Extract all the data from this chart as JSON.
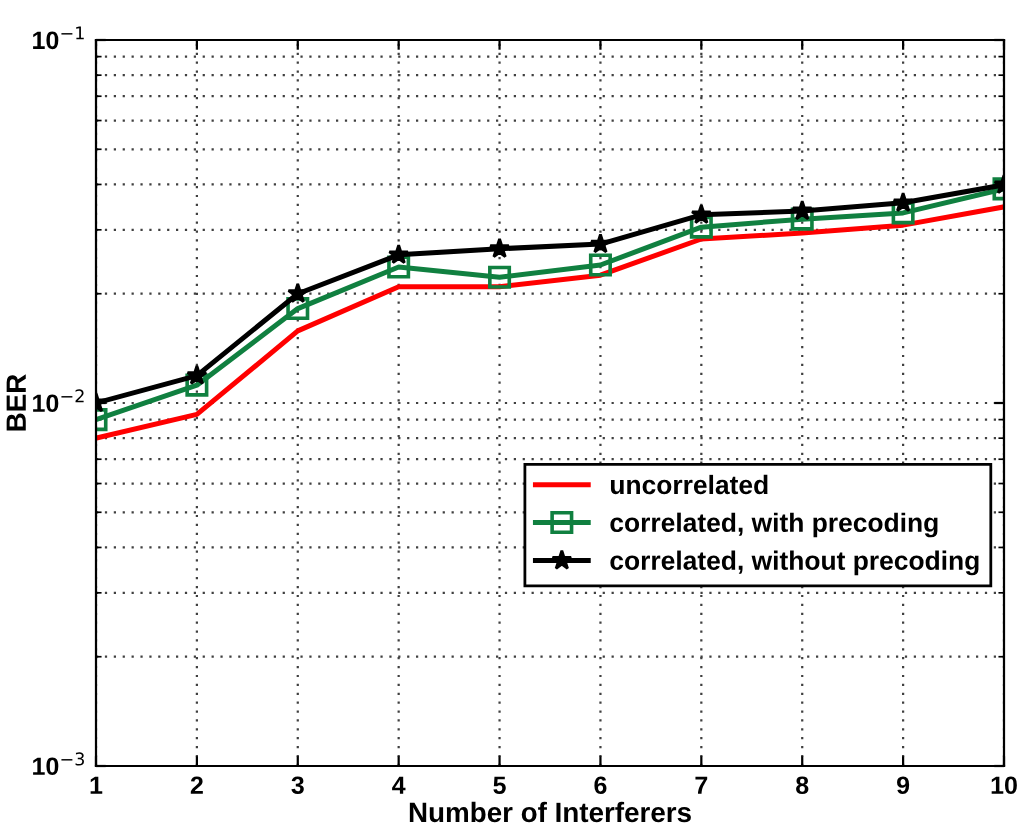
{
  "chart_data": {
    "type": "line",
    "xlabel": "Number of Interferers",
    "ylabel": "BER",
    "x": [
      1,
      2,
      3,
      4,
      5,
      6,
      7,
      8,
      9,
      10
    ],
    "series": [
      {
        "name": "uncorrelated",
        "color": "#ff0000",
        "marker": "none",
        "values": [
          0.008,
          0.0093,
          0.0158,
          0.0209,
          0.0209,
          0.0225,
          0.0283,
          0.0294,
          0.0309,
          0.0347
        ]
      },
      {
        "name": "correlated, with precoding",
        "color": "#108040",
        "marker": "square",
        "values": [
          0.009,
          0.0112,
          0.0182,
          0.0237,
          0.0222,
          0.024,
          0.0305,
          0.0321,
          0.0334,
          0.0389
        ]
      },
      {
        "name": "correlated, without precoding",
        "color": "#000000",
        "marker": "star",
        "values": [
          0.01,
          0.0119,
          0.02,
          0.0256,
          0.0266,
          0.0274,
          0.033,
          0.0338,
          0.0356,
          0.0399
        ]
      }
    ],
    "log": "y",
    "xlim": [
      1,
      10
    ],
    "ylim": [
      0.001,
      0.1
    ],
    "xticks": [
      1,
      2,
      3,
      4,
      5,
      6,
      7,
      8,
      9,
      10
    ],
    "yticks": [
      {
        "value": 0.001,
        "label": "10$^{−3}$"
      },
      {
        "value": 0.01,
        "label": "10$^{−2}$"
      },
      {
        "value": 0.1,
        "label": "10$^{−1}$"
      }
    ],
    "grid": true,
    "legend": "lower right",
    "line_style": "solid"
  }
}
